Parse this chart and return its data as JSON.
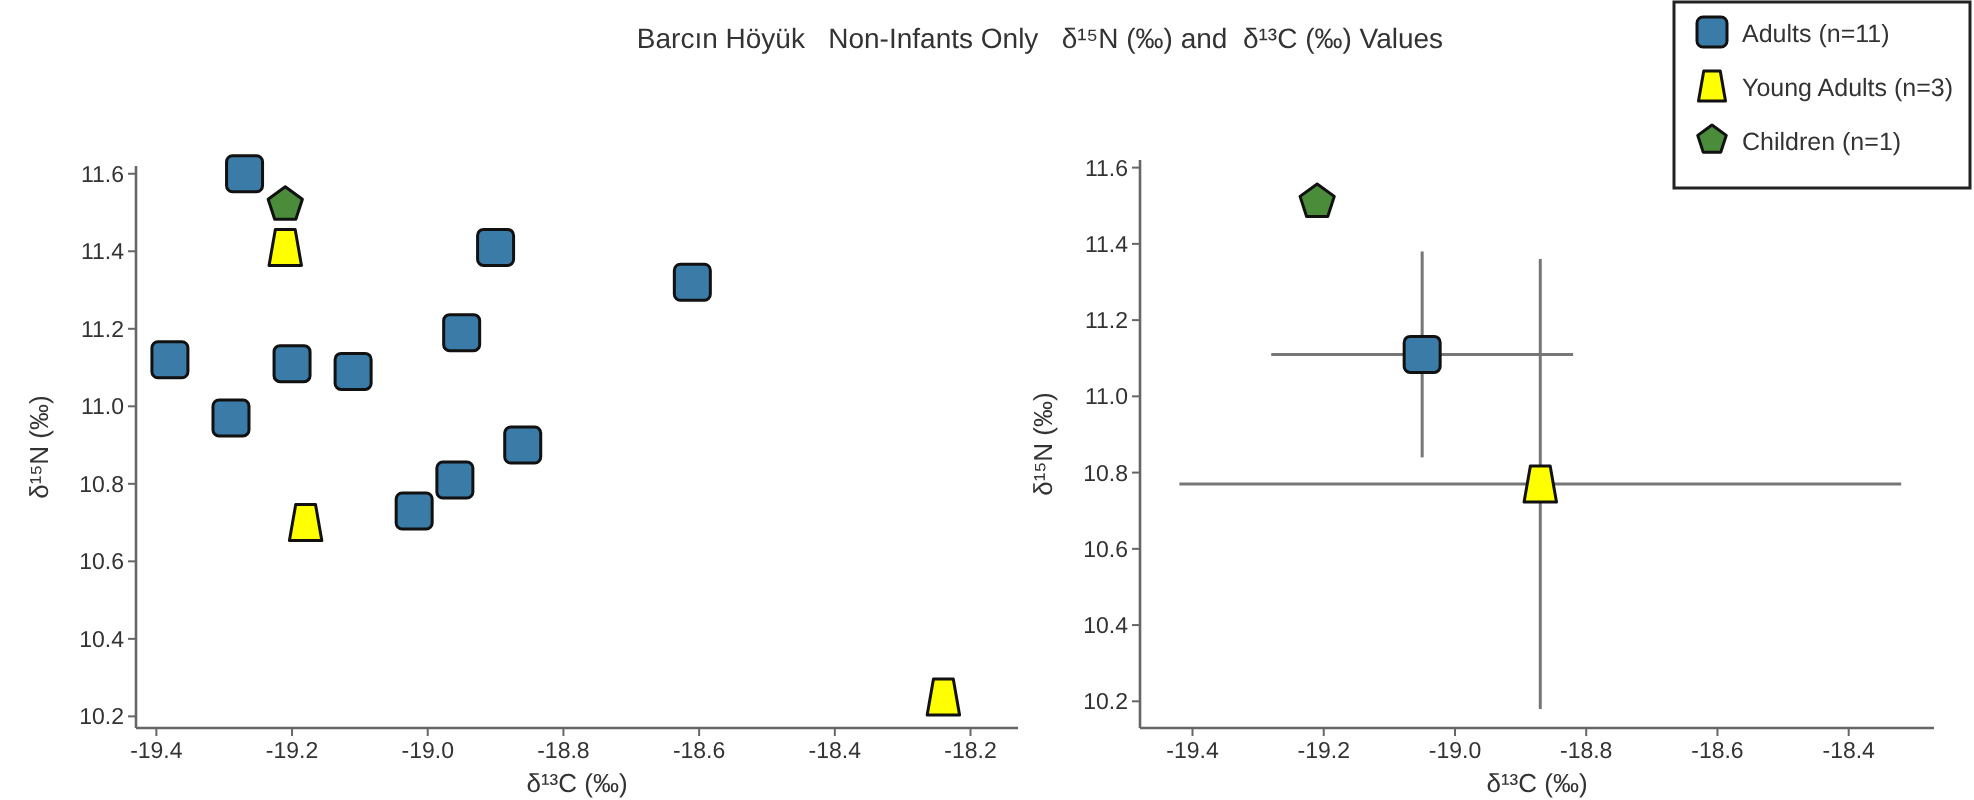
{
  "chart_data": [
    {
      "type": "scatter",
      "title": "Barcın Höyük   Non-Infants Only   δ¹⁵N (‰) and  δ¹³C (‰) Values",
      "xlabel": "δ¹³C (‰)",
      "ylabel": "δ¹⁵N (‰)",
      "xlim": [
        -19.43,
        -18.13
      ],
      "ylim": [
        10.17,
        11.62
      ],
      "xticks": [
        -19.4,
        -19.2,
        {
          "value": -19,
          "label": "-19.0"
        },
        -18.8,
        -18.6,
        -18.4,
        -18.2
      ],
      "yticks": [
        10.2,
        10.4,
        10.6,
        10.8,
        {
          "value": 11,
          "label": "11.0"
        },
        11.2,
        11.4,
        11.6
      ],
      "grid": false,
      "legend": false,
      "series": [
        {
          "color": "#3b7ba8",
          "marker": "square",
          "x": [
            -19.38,
            -19.27,
            -19.29,
            -19.2,
            -19.11,
            -19.02,
            -18.96,
            -18.95,
            -18.9,
            -18.86,
            -18.61
          ],
          "values": [
            11.12,
            11.6,
            10.97,
            11.11,
            11.09,
            10.73,
            10.81,
            11.19,
            11.41,
            10.9,
            11.32
          ]
        },
        {
          "color": "#ffff00",
          "x": [
            -19.21,
            -19.18,
            -18.24
          ],
          "values": [
            11.41,
            10.7,
            10.25
          ]
        },
        {
          "color": "#4a8c3a",
          "x": [
            -19.21
          ],
          "values": [
            11.52
          ]
        }
      ]
    },
    {
      "type": "scatter",
      "xlabel": "δ¹³C (‰)",
      "ylabel": "δ¹⁵N (‰)",
      "xlim": [
        -19.48,
        -18.27
      ],
      "ylim": [
        10.13,
        11.62
      ],
      "xticks": [
        -19.4,
        -19.2,
        {
          "value": -19,
          "label": "-19.0"
        },
        -18.8,
        -18.6,
        -18.4
      ],
      "yticks": [
        10.2,
        10.4,
        10.6,
        10.8,
        {
          "value": 11,
          "label": "11.0"
        },
        11.2,
        11.4,
        11.6
      ],
      "grid": false,
      "legend": "top right",
      "series": [
        {
          "name": "Adults (n=11)",
          "color": "#3b7ba8",
          "marker": "square",
          "x": [
            -19.05
          ],
          "values": [
            11.11
          ],
          "errors": [
            0.27
          ],
          "xerrors": [
            0.23
          ]
        },
        {
          "name": "Young Adults (n=3)",
          "color": "#ffff00",
          "x": [
            -18.87
          ],
          "values": [
            10.77
          ],
          "errors": [
            0.59
          ],
          "xerrors": [
            0.55
          ]
        },
        {
          "name": "Children (n=1)",
          "color": "#4a8c3a",
          "x": [
            -19.21
          ],
          "values": [
            11.51
          ]
        }
      ]
    }
  ]
}
